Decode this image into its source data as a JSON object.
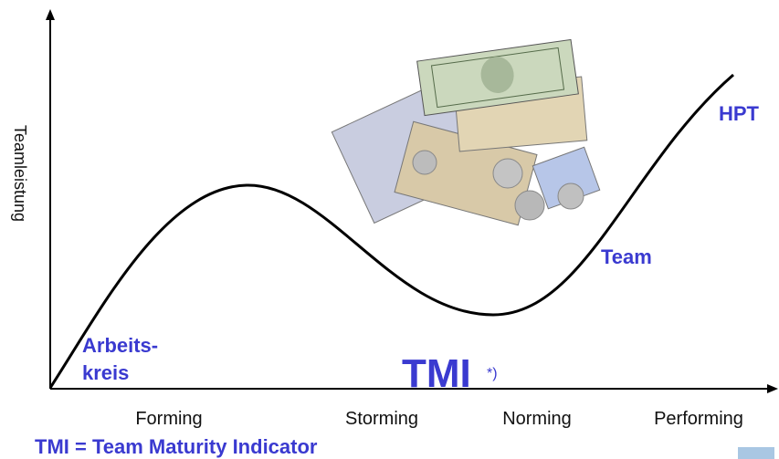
{
  "y_axis_label": "Teamleistung",
  "curve_labels": {
    "start": [
      "Arbeits-",
      "kreis"
    ],
    "team": "Team",
    "end": "HPT"
  },
  "tmi": {
    "label": "TMI",
    "footnote_mark": "*)"
  },
  "phases": [
    "Forming",
    "Storming",
    "Norming",
    "Performing"
  ],
  "footnote": "TMI = Team Maturity Indicator"
}
